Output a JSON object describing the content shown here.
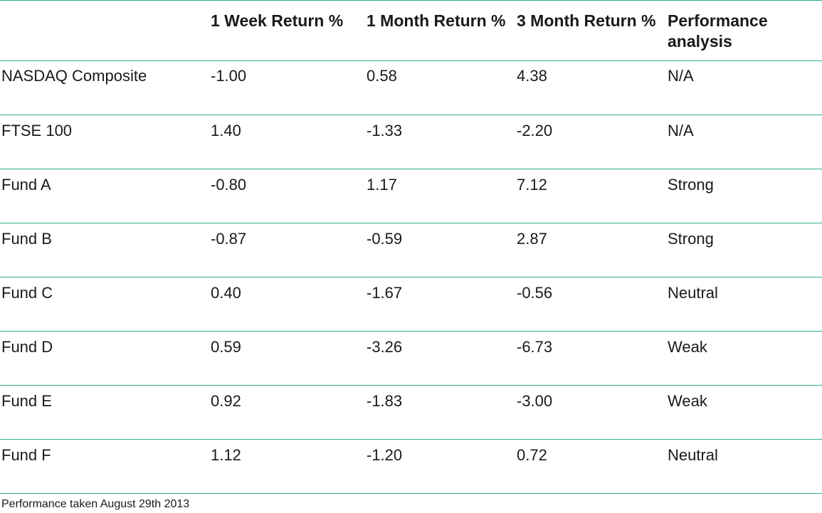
{
  "table": {
    "headers": [
      "",
      "1 Week Return %",
      "1 Month Return %",
      "3 Month Return %",
      "Performance analysis"
    ],
    "rows": [
      {
        "name": "NASDAQ Composite",
        "week": "-1.00",
        "month": "0.58",
        "three_month": "4.38",
        "analysis": "N/A"
      },
      {
        "name": "FTSE 100",
        "week": "1.40",
        "month": "-1.33",
        "three_month": "-2.20",
        "analysis": "N/A"
      },
      {
        "name": "Fund A",
        "week": "-0.80",
        "month": "1.17",
        "three_month": "7.12",
        "analysis": "Strong"
      },
      {
        "name": "Fund B",
        "week": "-0.87",
        "month": "-0.59",
        "three_month": "2.87",
        "analysis": "Strong"
      },
      {
        "name": "Fund C",
        "week": "0.40",
        "month": "-1.67",
        "three_month": "-0.56",
        "analysis": "Neutral"
      },
      {
        "name": "Fund D",
        "week": "0.59",
        "month": "-3.26",
        "three_month": "-6.73",
        "analysis": "Weak"
      },
      {
        "name": "Fund E",
        "week": "0.92",
        "month": "-1.83",
        "three_month": "-3.00",
        "analysis": "Weak"
      },
      {
        "name": "Fund F",
        "week": "1.12",
        "month": "-1.20",
        "three_month": "0.72",
        "analysis": "Neutral"
      }
    ]
  },
  "footnote": "Performance taken August 29th 2013",
  "colors": {
    "rule_line": "#2dac8d",
    "text": "#1a1a1a"
  }
}
